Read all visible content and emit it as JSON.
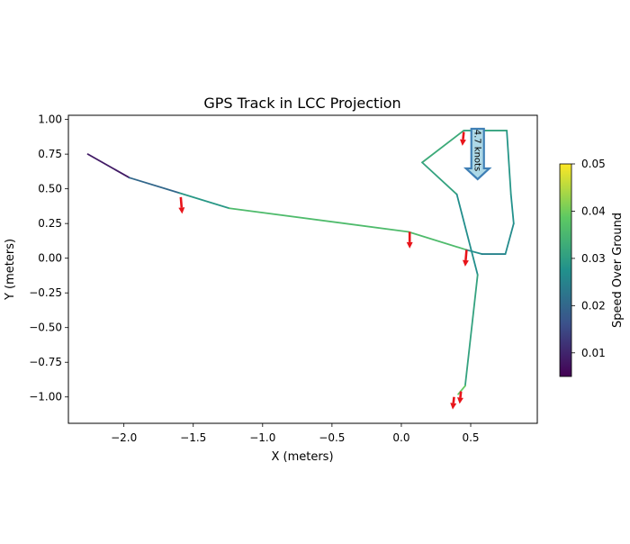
{
  "chart_data": {
    "type": "line",
    "title": "GPS Track in LCC Projection",
    "xlabel": "X (meters)",
    "ylabel": "Y (meters)",
    "xlim": [
      -2.4,
      0.98
    ],
    "ylim": [
      -1.19,
      1.03
    ],
    "xticks": [
      -2.0,
      -1.5,
      -1.0,
      -0.5,
      0.0,
      0.5
    ],
    "xtick_labels": [
      "−2.0",
      "−1.5",
      "−1.0",
      "−0.5",
      "0.0",
      "0.5"
    ],
    "yticks": [
      1.0,
      0.75,
      0.5,
      0.25,
      0.0,
      -0.25,
      -0.5,
      -0.75,
      -1.0
    ],
    "ytick_labels": [
      "1.00",
      "0.75",
      "0.50",
      "0.25",
      "0.00",
      "−0.25",
      "−0.50",
      "−0.75",
      "−1.00"
    ],
    "colormap": "viridis",
    "colorbar": {
      "label": "Speed Over Ground",
      "range": [
        0.005,
        0.05
      ],
      "ticks": [
        0.01,
        0.02,
        0.03,
        0.04,
        0.05
      ],
      "tick_labels": [
        "0.01",
        "0.02",
        "0.03",
        "0.04",
        "0.05"
      ]
    },
    "track": [
      {
        "x": -2.26,
        "y": 0.75,
        "speed": 0.005
      },
      {
        "x": -1.96,
        "y": 0.58,
        "speed": 0.012
      },
      {
        "x": -1.6,
        "y": 0.47,
        "speed": 0.028
      },
      {
        "x": -1.24,
        "y": 0.36,
        "speed": 0.03
      },
      {
        "x": 0.05,
        "y": 0.19,
        "speed": 0.042
      },
      {
        "x": 0.47,
        "y": 0.06,
        "speed": 0.03
      },
      {
        "x": 0.58,
        "y": 0.03,
        "speed": 0.024
      },
      {
        "x": 0.75,
        "y": 0.03,
        "speed": 0.026
      },
      {
        "x": 0.81,
        "y": 0.25,
        "speed": 0.027
      },
      {
        "x": 0.79,
        "y": 0.46,
        "speed": 0.028
      },
      {
        "x": 0.76,
        "y": 0.92,
        "speed": 0.029
      },
      {
        "x": 0.45,
        "y": 0.92,
        "speed": 0.033
      },
      {
        "x": 0.15,
        "y": 0.69,
        "speed": 0.032
      },
      {
        "x": 0.4,
        "y": 0.46,
        "speed": 0.03
      },
      {
        "x": 0.55,
        "y": -0.12,
        "speed": 0.024
      },
      {
        "x": 0.46,
        "y": -0.92,
        "speed": 0.038
      },
      {
        "x": 0.41,
        "y": -0.98,
        "speed": 0.04
      }
    ],
    "heading_arrows": [
      {
        "x": -1.59,
        "y": 0.44,
        "dx": 0.01,
        "dy": -0.12
      },
      {
        "x": 0.06,
        "y": 0.19,
        "dx": 0.0,
        "dy": -0.12
      },
      {
        "x": 0.47,
        "y": 0.06,
        "dx": -0.01,
        "dy": -0.12
      },
      {
        "x": 0.45,
        "y": 0.91,
        "dx": -0.01,
        "dy": -0.1
      },
      {
        "x": 0.43,
        "y": -0.96,
        "dx": -0.01,
        "dy": -0.09
      },
      {
        "x": 0.38,
        "y": -1.0,
        "dx": -0.01,
        "dy": -0.09
      }
    ],
    "annotations": [
      {
        "text": "4.7 knots",
        "x": 0.55,
        "y": 0.92,
        "direction": "down"
      }
    ]
  }
}
